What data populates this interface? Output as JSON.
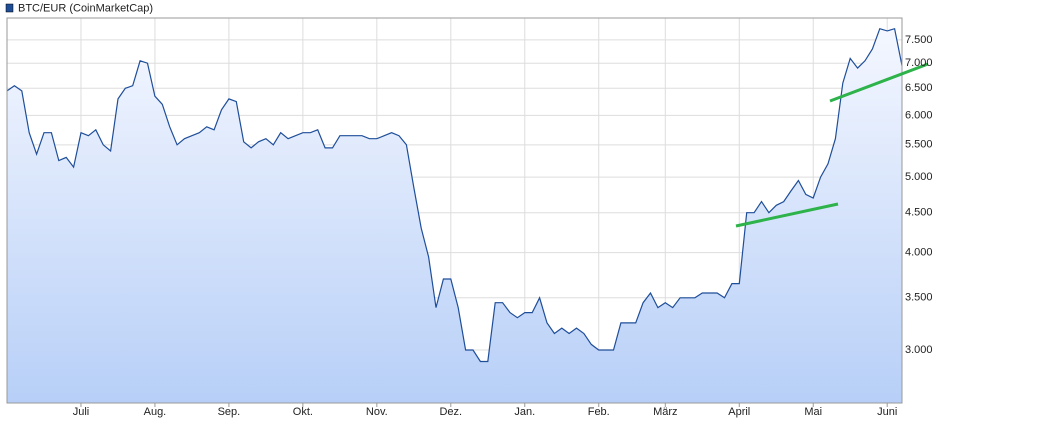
{
  "chart_data": {
    "type": "line",
    "legend": "top-left",
    "grid": true,
    "log_scale": true,
    "ylim": [
      2565,
      8000
    ],
    "yticks": [
      {
        "value": 3000,
        "label": "3.000"
      },
      {
        "value": 3500,
        "label": "3.500"
      },
      {
        "value": 4000,
        "label": "4.000"
      },
      {
        "value": 4500,
        "label": "4.500"
      },
      {
        "value": 5000,
        "label": "5.000"
      },
      {
        "value": 5500,
        "label": "5.500"
      },
      {
        "value": 6000,
        "label": "6.000"
      },
      {
        "value": 6500,
        "label": "6.500"
      },
      {
        "value": 7000,
        "label": "7.000"
      },
      {
        "value": 7500,
        "label": "7.500"
      }
    ],
    "categories": [
      null,
      null,
      null,
      null,
      null,
      null,
      null,
      null,
      null,
      null,
      "Juli",
      null,
      null,
      null,
      null,
      null,
      null,
      null,
      null,
      null,
      "Aug.",
      null,
      null,
      null,
      null,
      null,
      null,
      null,
      null,
      null,
      "Sep.",
      null,
      null,
      null,
      null,
      null,
      null,
      null,
      null,
      null,
      "Okt.",
      null,
      null,
      null,
      null,
      null,
      null,
      null,
      null,
      null,
      "Nov.",
      null,
      null,
      null,
      null,
      null,
      null,
      null,
      null,
      null,
      "Dez.",
      null,
      null,
      null,
      null,
      null,
      null,
      null,
      null,
      null,
      "Jan.",
      null,
      null,
      null,
      null,
      null,
      null,
      null,
      null,
      null,
      "Feb.",
      null,
      null,
      null,
      null,
      null,
      null,
      null,
      null,
      "März",
      null,
      null,
      null,
      null,
      null,
      null,
      null,
      null,
      null,
      "April",
      null,
      null,
      null,
      null,
      null,
      null,
      null,
      null,
      null,
      "Mai",
      null,
      null,
      null,
      null,
      null,
      null,
      null,
      null,
      null,
      "Juni",
      null,
      null
    ],
    "series": [
      {
        "name": "BTC/EUR (CoinMarketCap)",
        "color": "#1f4e99",
        "values": [
          6450,
          6550,
          6450,
          5700,
          5350,
          5700,
          5700,
          5250,
          5300,
          5150,
          5700,
          5650,
          5750,
          5500,
          5400,
          6300,
          6500,
          6550,
          7050,
          7000,
          6350,
          6200,
          5800,
          5500,
          5600,
          5650,
          5700,
          5800,
          5750,
          6100,
          6300,
          6250,
          5550,
          5450,
          5550,
          5600,
          5500,
          5700,
          5600,
          5650,
          5700,
          5700,
          5750,
          5450,
          5450,
          5650,
          5650,
          5650,
          5650,
          5600,
          5600,
          5650,
          5700,
          5650,
          5500,
          4850,
          4300,
          3950,
          3400,
          3700,
          3700,
          3400,
          3000,
          3000,
          2900,
          2900,
          3450,
          3450,
          3350,
          3300,
          3350,
          3350,
          3500,
          3250,
          3150,
          3200,
          3150,
          3200,
          3150,
          3050,
          3000,
          3000,
          3000,
          3250,
          3250,
          3250,
          3450,
          3550,
          3400,
          3450,
          3400,
          3500,
          3500,
          3500,
          3550,
          3550,
          3550,
          3500,
          3650,
          3650,
          4500,
          4500,
          4650,
          4500,
          4600,
          4650,
          4800,
          4950,
          4750,
          4700,
          5000,
          5200,
          5600,
          6600,
          7100,
          6900,
          7050,
          7300,
          7750,
          7700,
          7750,
          6950
        ]
      }
    ]
  }
}
